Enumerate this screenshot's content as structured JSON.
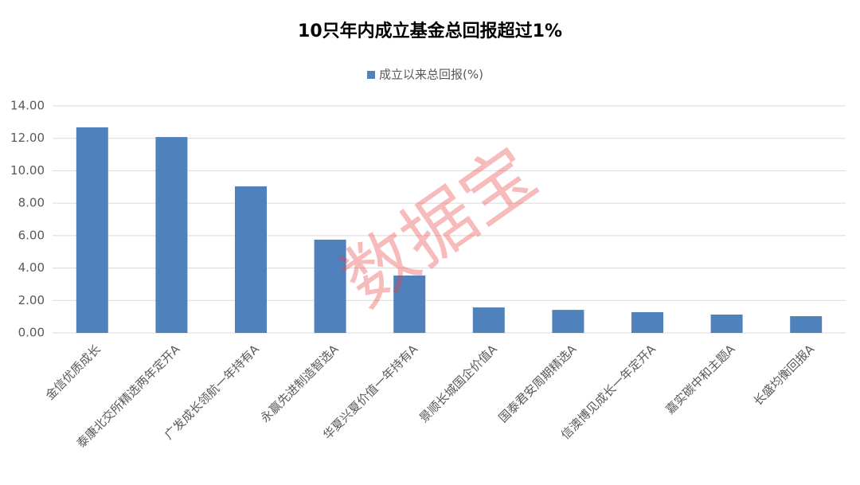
{
  "chart_data": {
    "type": "bar",
    "title": "10只年内成立基金总回报超过1%",
    "watermark": "数据宝",
    "categories": [
      "金信优质成长",
      "泰康北交所精选两年定开A",
      "广发成长领航一年持有A",
      "永赢先进制造智选A",
      "华夏兴夏价值一年持有A",
      "景顺长城国企价值A",
      "国泰君安周期精选A",
      "信澳博见成长一年定开A",
      "嘉实碳中和主题A",
      "长盛均衡回报A"
    ],
    "series": [
      {
        "name": "成立以来总回报(%)",
        "color": "#4f81bd",
        "values": [
          12.68,
          12.08,
          9.04,
          5.75,
          3.54,
          1.57,
          1.42,
          1.28,
          1.13,
          1.03
        ]
      }
    ],
    "ylim": [
      0,
      14
    ],
    "yticks": [
      {
        "value": 0,
        "label": "0.00"
      },
      {
        "value": 2,
        "label": "2.00"
      },
      {
        "value": 4,
        "label": "4.00"
      },
      {
        "value": 6,
        "label": "6.00"
      },
      {
        "value": 8,
        "label": "8.00"
      },
      {
        "value": 10,
        "label": "10.00"
      },
      {
        "value": 12,
        "label": "12.00"
      },
      {
        "value": 14,
        "label": "14.00"
      }
    ],
    "grid": true
  }
}
